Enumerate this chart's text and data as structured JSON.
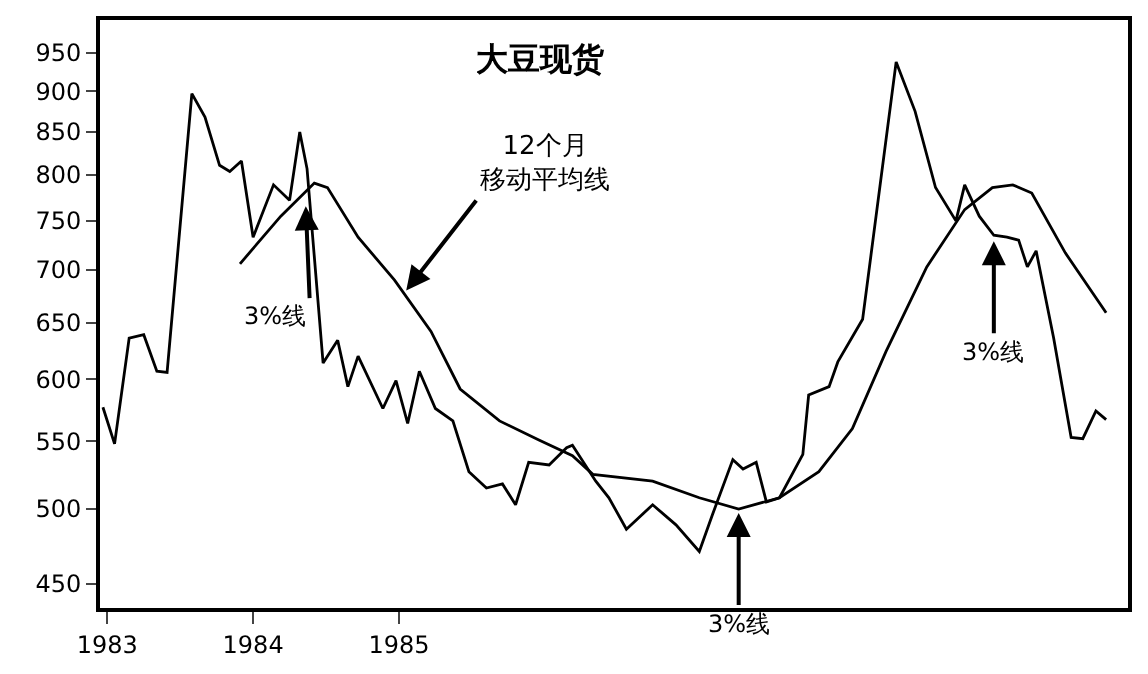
{
  "chart_data": {
    "type": "line",
    "title": "大豆现货",
    "log": true,
    "marker": "none",
    "line_style": "solid",
    "xlim": [
      1982.95,
      1990.0
    ],
    "xticks": [
      1983,
      1984,
      1985
    ],
    "ylim": [
      435,
      995
    ],
    "yticks": [
      450,
      500,
      550,
      600,
      650,
      700,
      750,
      800,
      850,
      900,
      950
    ],
    "series": [
      {
        "color": "#000000",
        "x": [
          1982.97,
          1983.05,
          1983.15,
          1983.25,
          1983.34,
          1983.41,
          1983.58,
          1983.67,
          1983.77,
          1983.84,
          1983.92,
          1984.0,
          1984.14,
          1984.25,
          1984.32,
          1984.37,
          1984.48,
          1984.58,
          1984.65,
          1984.72,
          1984.89,
          1984.98,
          1985.06,
          1985.14,
          1985.25,
          1985.37,
          1985.48,
          1985.6,
          1985.71,
          1985.8,
          1985.89,
          1986.03,
          1986.15,
          1986.19,
          1986.35,
          1986.44,
          1986.56,
          1986.74,
          1986.9,
          1987.06,
          1987.15,
          1987.29,
          1987.36,
          1987.45,
          1987.52,
          1987.61,
          1987.77,
          1987.81,
          1987.95,
          1988.01,
          1988.18,
          1988.41,
          1988.54,
          1988.68,
          1988.82,
          1988.88,
          1988.98,
          1989.08,
          1989.17,
          1989.25,
          1989.31,
          1989.37,
          1989.49,
          1989.61,
          1989.69,
          1989.78,
          1989.85
        ],
        "values": [
          577,
          548,
          636,
          639,
          607,
          606,
          897,
          868,
          811,
          804,
          816,
          733,
          789,
          772,
          850,
          807,
          614,
          634,
          594,
          620,
          576,
          599,
          564,
          607,
          576,
          566,
          527,
          515,
          518,
          503,
          534,
          532,
          545,
          547,
          520,
          508,
          486,
          503,
          489,
          471,
          496,
          536,
          529,
          534,
          505,
          508,
          540,
          587,
          594,
          615,
          653,
          938,
          875,
          786,
          750,
          789,
          755,
          735,
          733,
          730,
          703,
          719,
          636,
          553,
          552,
          574,
          567
        ]
      },
      {
        "color": "#000000",
        "x": [
          1983.91,
          1984.19,
          1984.42,
          1984.51,
          1984.72,
          1984.97,
          1985.22,
          1985.42,
          1985.69,
          1985.96,
          1986.19,
          1986.33,
          1986.74,
          1987.06,
          1987.33,
          1987.61,
          1987.88,
          1988.11,
          1988.34,
          1988.62,
          1988.88,
          1989.07,
          1989.21,
          1989.34,
          1989.57,
          1989.85
        ],
        "values": [
          706,
          755,
          791,
          786,
          733,
          690,
          642,
          592,
          566,
          551,
          539,
          525,
          520,
          508,
          500,
          508,
          527,
          560,
          624,
          703,
          762,
          786,
          789,
          780,
          717,
          659
        ]
      }
    ],
    "annotations": [
      {
        "text": "12个月移动平均线",
        "x": 1985.05,
        "y": 680
      },
      {
        "text": "3%线",
        "x": 1984.36,
        "y": 770
      },
      {
        "text": "3%线",
        "x": 1987.33,
        "y": 500
      },
      {
        "text": "3%线",
        "x": 1989.08,
        "y": 733
      }
    ]
  }
}
